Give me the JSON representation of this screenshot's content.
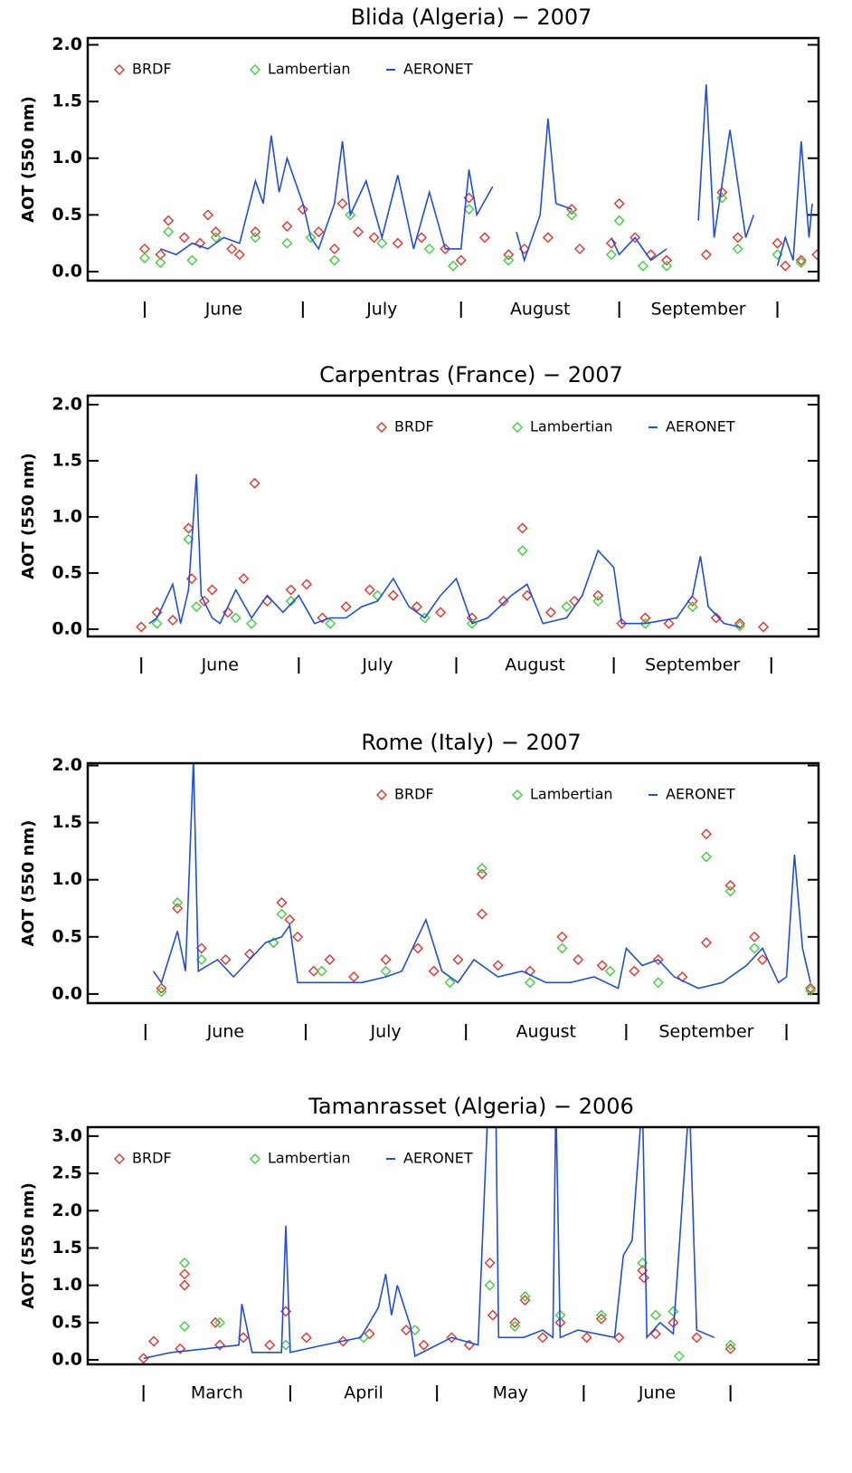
{
  "chart_data": [
    {
      "type": "line",
      "title": "Blida (Algeria) − 2007",
      "y_label": "AOT (550 nm)",
      "legend": "upper left",
      "xlim": [
        -0.36,
        4.26
      ],
      "xticks": [
        {
          "value": 0.5,
          "label": "June"
        },
        {
          "value": 1.5,
          "label": "July"
        },
        {
          "value": 2.5,
          "label": "August"
        },
        {
          "value": 3.5,
          "label": "September"
        }
      ],
      "xdividers": [
        0,
        1,
        2,
        3,
        4
      ],
      "ylim": [
        -0.08,
        2.06
      ],
      "yticks": [
        {
          "value": 0,
          "label": "0.0"
        },
        {
          "value": 0.5,
          "label": "0.5"
        },
        {
          "value": 1,
          "label": "1.0"
        },
        {
          "value": 1.5,
          "label": "1.5"
        },
        {
          "value": 2,
          "label": "2.0"
        }
      ],
      "series": [
        {
          "name": "BRDF",
          "color": "#e8302a",
          "marker": "diamond",
          "x": [
            0.0,
            0.1,
            0.15,
            0.25,
            0.35,
            0.4,
            0.45,
            0.55,
            0.6,
            0.7,
            0.9,
            1.0,
            1.1,
            1.2,
            1.25,
            1.35,
            1.45,
            1.6,
            1.75,
            1.9,
            2.0,
            2.05,
            2.15,
            2.3,
            2.4,
            2.55,
            2.7,
            2.75,
            2.95,
            3.0,
            3.1,
            3.2,
            3.3,
            3.55,
            3.65,
            3.75,
            4.0,
            4.05,
            4.15,
            4.25
          ],
          "values": [
            0.2,
            0.15,
            0.45,
            0.3,
            0.25,
            0.5,
            0.35,
            0.2,
            0.15,
            0.35,
            0.4,
            0.55,
            0.35,
            0.2,
            0.6,
            0.35,
            0.3,
            0.25,
            0.3,
            0.2,
            0.1,
            0.65,
            0.3,
            0.15,
            0.2,
            0.3,
            0.55,
            0.2,
            0.25,
            0.6,
            0.3,
            0.15,
            0.1,
            0.15,
            0.7,
            0.3,
            0.25,
            0.05,
            0.1,
            0.15
          ]
        },
        {
          "name": "Lambertian",
          "color": "#3ecf3e",
          "marker": "diamond",
          "x": [
            0.0,
            0.1,
            0.15,
            0.3,
            0.45,
            0.7,
            0.9,
            1.05,
            1.2,
            1.3,
            1.5,
            1.8,
            1.95,
            2.05,
            2.3,
            2.7,
            2.95,
            3.0,
            3.15,
            3.3,
            3.65,
            3.75,
            4.0,
            4.15
          ],
          "values": [
            0.12,
            0.08,
            0.35,
            0.1,
            0.3,
            0.3,
            0.25,
            0.3,
            0.1,
            0.5,
            0.25,
            0.2,
            0.05,
            0.55,
            0.1,
            0.5,
            0.15,
            0.45,
            0.05,
            0.05,
            0.65,
            0.2,
            0.15,
            0.08
          ]
        },
        {
          "name": "AERONET",
          "color": "#1f4fd8",
          "marker": "line",
          "x": [
            0.1,
            0.2,
            0.3,
            0.4,
            0.5,
            0.6,
            0.7,
            0.75,
            0.8,
            0.85,
            0.9,
            1.0,
            1.05,
            1.1,
            1.2,
            1.25,
            1.3,
            1.4,
            1.5,
            1.6,
            1.7,
            1.8,
            1.9,
            2.0,
            2.05,
            2.1,
            2.2,
            2.3,
            2.35,
            2.4,
            2.5,
            2.55,
            2.6,
            2.7,
            2.8,
            2.95,
            3.0,
            3.1,
            3.2,
            3.3,
            3.4,
            3.5,
            3.55,
            3.6,
            3.7,
            3.8,
            3.85,
            3.9,
            4.0,
            4.05,
            4.1,
            4.15,
            4.2,
            4.22
          ],
          "values": [
            0.2,
            0.15,
            0.25,
            0.2,
            0.3,
            0.25,
            0.8,
            0.6,
            1.2,
            0.7,
            1.0,
            0.6,
            0.3,
            0.2,
            0.6,
            1.15,
            0.5,
            0.8,
            0.3,
            0.85,
            0.2,
            0.7,
            0.2,
            0.2,
            0.9,
            0.5,
            0.75,
            null,
            0.35,
            0.1,
            0.5,
            1.35,
            0.6,
            0.55,
            null,
            0.3,
            0.15,
            0.3,
            0.1,
            0.2,
            null,
            0.45,
            1.65,
            0.3,
            1.25,
            0.3,
            0.5,
            null,
            0.05,
            0.3,
            0.1,
            1.15,
            0.3,
            0.6
          ]
        }
      ]
    },
    {
      "type": "line",
      "title": "Carpentras (France) − 2007",
      "y_label": "AOT (550 nm)",
      "legend": "upper right",
      "xlim": [
        -0.34,
        4.3
      ],
      "xticks": [
        {
          "value": 0.5,
          "label": "June"
        },
        {
          "value": 1.5,
          "label": "July"
        },
        {
          "value": 2.5,
          "label": "August"
        },
        {
          "value": 3.5,
          "label": "September"
        }
      ],
      "xdividers": [
        0,
        1,
        2,
        3,
        4
      ],
      "ylim": [
        -0.065,
        2.08
      ],
      "yticks": [
        {
          "value": 0,
          "label": "0.0"
        },
        {
          "value": 0.5,
          "label": "0.5"
        },
        {
          "value": 1,
          "label": "1.0"
        },
        {
          "value": 1.5,
          "label": "1.5"
        },
        {
          "value": 2,
          "label": "2.0"
        }
      ],
      "series": [
        {
          "name": "BRDF",
          "color": "#e8302a",
          "marker": "diamond",
          "x": [
            0.0,
            0.1,
            0.2,
            0.3,
            0.32,
            0.4,
            0.45,
            0.55,
            0.65,
            0.72,
            0.8,
            0.95,
            1.05,
            1.15,
            1.3,
            1.45,
            1.6,
            1.75,
            1.9,
            2.1,
            2.3,
            2.42,
            2.45,
            2.6,
            2.75,
            2.9,
            3.05,
            3.2,
            3.35,
            3.5,
            3.65,
            3.8,
            3.95
          ],
          "values": [
            0.02,
            0.15,
            0.08,
            0.9,
            0.45,
            0.25,
            0.35,
            0.15,
            0.45,
            1.3,
            0.25,
            0.35,
            0.4,
            0.1,
            0.2,
            0.35,
            0.3,
            0.2,
            0.15,
            0.1,
            0.25,
            0.9,
            0.3,
            0.15,
            0.25,
            0.3,
            0.05,
            0.1,
            0.05,
            0.25,
            0.1,
            0.05,
            0.02
          ]
        },
        {
          "name": "Lambertian",
          "color": "#3ecf3e",
          "marker": "diamond",
          "x": [
            0.1,
            0.3,
            0.35,
            0.6,
            0.7,
            0.95,
            1.2,
            1.5,
            1.8,
            2.1,
            2.42,
            2.7,
            2.9,
            3.2,
            3.5,
            3.8
          ],
          "values": [
            0.05,
            0.8,
            0.2,
            0.1,
            0.05,
            0.25,
            0.05,
            0.3,
            0.1,
            0.05,
            0.7,
            0.2,
            0.25,
            0.05,
            0.2,
            0.03
          ]
        },
        {
          "name": "AERONET",
          "color": "#1f4fd8",
          "marker": "line",
          "x": [
            0.05,
            0.1,
            0.2,
            0.25,
            0.3,
            0.35,
            0.38,
            0.45,
            0.5,
            0.6,
            0.7,
            0.8,
            0.9,
            1.0,
            1.1,
            1.2,
            1.3,
            1.4,
            1.5,
            1.6,
            1.7,
            1.8,
            1.9,
            2.0,
            2.1,
            2.2,
            2.35,
            2.45,
            2.55,
            2.7,
            2.8,
            2.9,
            3.0,
            3.05,
            3.2,
            3.4,
            3.5,
            3.55,
            3.6,
            3.7,
            3.8
          ],
          "values": [
            0.05,
            0.1,
            0.4,
            0.05,
            0.35,
            1.38,
            0.3,
            0.1,
            0.05,
            0.35,
            0.1,
            0.3,
            0.15,
            0.3,
            0.05,
            0.1,
            0.1,
            0.2,
            0.25,
            0.45,
            0.2,
            0.1,
            0.3,
            0.45,
            0.05,
            0.1,
            0.3,
            0.4,
            0.05,
            0.1,
            0.3,
            0.7,
            0.55,
            0.05,
            0.05,
            0.1,
            0.3,
            0.65,
            0.2,
            0.05,
            0.02
          ]
        }
      ]
    },
    {
      "type": "line",
      "title": "Rome (Italy) − 2007",
      "y_label": "AOT (550 nm)",
      "legend": "upper right",
      "xlim": [
        -0.36,
        4.2
      ],
      "xticks": [
        {
          "value": 0.5,
          "label": "June"
        },
        {
          "value": 1.5,
          "label": "July"
        },
        {
          "value": 2.5,
          "label": "August"
        },
        {
          "value": 3.5,
          "label": "September"
        }
      ],
      "xdividers": [
        0,
        1,
        2,
        3,
        4
      ],
      "ylim": [
        -0.08,
        2.02
      ],
      "yticks": [
        {
          "value": 0,
          "label": "0.0"
        },
        {
          "value": 0.5,
          "label": "0.5"
        },
        {
          "value": 1,
          "label": "1.0"
        },
        {
          "value": 1.5,
          "label": "1.5"
        },
        {
          "value": 2,
          "label": "2.0"
        }
      ],
      "series": [
        {
          "name": "BRDF",
          "color": "#e8302a",
          "marker": "diamond",
          "x": [
            0.1,
            0.2,
            0.35,
            0.5,
            0.65,
            0.8,
            0.85,
            0.9,
            0.95,
            1.05,
            1.15,
            1.3,
            1.5,
            1.7,
            1.8,
            1.95,
            2.1,
            2.1,
            2.2,
            2.4,
            2.6,
            2.7,
            2.85,
            3.05,
            3.2,
            3.35,
            3.5,
            3.5,
            3.65,
            3.8,
            3.85,
            4.15
          ],
          "values": [
            0.05,
            0.75,
            0.4,
            0.3,
            0.35,
            0.45,
            0.8,
            0.65,
            0.5,
            0.2,
            0.3,
            0.15,
            0.3,
            0.4,
            0.2,
            0.3,
            0.7,
            1.05,
            0.25,
            0.2,
            0.5,
            0.3,
            0.25,
            0.2,
            0.3,
            0.15,
            1.4,
            0.45,
            0.95,
            0.5,
            0.3,
            0.05
          ]
        },
        {
          "name": "Lambertian",
          "color": "#3ecf3e",
          "marker": "diamond",
          "x": [
            0.1,
            0.2,
            0.35,
            0.8,
            0.85,
            1.1,
            1.5,
            1.9,
            2.1,
            2.4,
            2.6,
            2.9,
            3.2,
            3.5,
            3.65,
            3.8,
            4.15
          ],
          "values": [
            0.02,
            0.8,
            0.3,
            0.45,
            0.7,
            0.2,
            0.2,
            0.1,
            1.1,
            0.1,
            0.4,
            0.2,
            0.1,
            1.2,
            0.9,
            0.4,
            0.03
          ]
        },
        {
          "name": "AERONET",
          "color": "#1f4fd8",
          "marker": "line",
          "x": [
            0.05,
            0.1,
            0.2,
            0.25,
            0.3,
            0.33,
            0.45,
            0.55,
            0.65,
            0.75,
            0.85,
            0.9,
            0.95,
            1.05,
            1.2,
            1.35,
            1.5,
            1.6,
            1.7,
            1.75,
            1.85,
            1.95,
            2.05,
            2.2,
            2.35,
            2.5,
            2.65,
            2.8,
            2.95,
            3.0,
            3.1,
            3.2,
            3.3,
            3.45,
            3.6,
            3.75,
            3.85,
            3.95,
            4.0,
            4.05,
            4.1,
            4.15
          ],
          "values": [
            0.2,
            0.1,
            0.55,
            0.2,
            2.05,
            0.2,
            0.3,
            0.15,
            0.3,
            0.45,
            0.5,
            0.6,
            0.1,
            0.1,
            0.1,
            0.1,
            0.15,
            0.2,
            0.5,
            0.65,
            0.2,
            0.1,
            0.3,
            0.15,
            0.2,
            0.1,
            0.1,
            0.15,
            0.05,
            0.4,
            0.25,
            0.3,
            0.15,
            0.05,
            0.1,
            0.25,
            0.4,
            0.1,
            0.15,
            1.22,
            0.4,
            0.1
          ]
        }
      ]
    },
    {
      "type": "line",
      "title": "Tamanrasset (Algeria) − 2006",
      "y_label": "AOT (550 nm)",
      "legend": "upper left",
      "xlim": [
        -0.38,
        4.6
      ],
      "xticks": [
        {
          "value": 0.5,
          "label": "March"
        },
        {
          "value": 1.5,
          "label": "April"
        },
        {
          "value": 2.5,
          "label": "May"
        },
        {
          "value": 3.5,
          "label": "June"
        }
      ],
      "xdividers": [
        0,
        1,
        2,
        3,
        4
      ],
      "ylim": [
        -0.06,
        3.12
      ],
      "yticks": [
        {
          "value": 0,
          "label": "0.0"
        },
        {
          "value": 0.5,
          "label": "0.5"
        },
        {
          "value": 1,
          "label": "1.0"
        },
        {
          "value": 1.5,
          "label": "1.5"
        },
        {
          "value": 2,
          "label": "2.0"
        },
        {
          "value": 2.5,
          "label": "2.5"
        },
        {
          "value": 3,
          "label": "3.0"
        }
      ],
      "series": [
        {
          "name": "BRDF",
          "color": "#e8302a",
          "marker": "diamond",
          "x": [
            0.0,
            0.07,
            0.25,
            0.28,
            0.28,
            0.49,
            0.52,
            0.68,
            0.86,
            0.97,
            1.11,
            1.36,
            1.54,
            1.79,
            1.91,
            2.1,
            2.22,
            2.36,
            2.38,
            2.53,
            2.6,
            2.72,
            2.84,
            3.02,
            3.12,
            3.24,
            3.4,
            3.41,
            3.49,
            3.61,
            3.77,
            4.0
          ],
          "values": [
            0.02,
            0.25,
            0.15,
            1.15,
            1.0,
            0.5,
            0.2,
            0.3,
            0.2,
            0.65,
            0.3,
            0.25,
            0.35,
            0.4,
            0.2,
            0.3,
            0.2,
            1.3,
            0.6,
            0.5,
            0.8,
            0.3,
            0.5,
            0.3,
            0.55,
            0.3,
            1.2,
            1.1,
            0.35,
            0.5,
            0.3,
            0.15
          ]
        },
        {
          "name": "Lambertian",
          "color": "#3ecf3e",
          "marker": "diamond",
          "x": [
            0.28,
            0.28,
            0.52,
            0.97,
            1.5,
            1.85,
            2.36,
            2.53,
            2.6,
            2.84,
            3.12,
            3.4,
            3.49,
            3.61,
            3.65,
            4.0
          ],
          "values": [
            1.3,
            0.45,
            0.5,
            0.2,
            0.3,
            0.4,
            1.0,
            0.45,
            0.85,
            0.6,
            0.6,
            1.3,
            0.6,
            0.65,
            0.05,
            0.2
          ]
        },
        {
          "name": "AERONET",
          "color": "#1f4fd8",
          "marker": "line",
          "x": [
            0.0,
            0.19,
            0.43,
            0.65,
            0.67,
            0.74,
            0.94,
            0.97,
            1.0,
            1.23,
            1.48,
            1.6,
            1.65,
            1.69,
            1.73,
            1.82,
            1.85,
            2.1,
            2.28,
            2.35,
            2.4,
            2.42,
            2.59,
            2.72,
            2.79,
            2.81,
            2.84,
            2.96,
            3.21,
            3.27,
            3.33,
            3.4,
            3.43,
            3.52,
            3.61,
            3.72,
            3.77,
            3.89
          ],
          "values": [
            0.02,
            0.1,
            0.15,
            0.2,
            0.75,
            0.1,
            0.1,
            1.8,
            0.1,
            0.2,
            0.3,
            0.7,
            1.15,
            0.6,
            1.0,
            0.45,
            0.05,
            0.3,
            0.2,
            3.5,
            3.5,
            0.3,
            0.3,
            0.4,
            0.3,
            3.5,
            0.3,
            0.4,
            0.3,
            1.4,
            1.6,
            3.5,
            0.3,
            0.5,
            0.35,
            3.5,
            0.4,
            0.3
          ]
        }
      ]
    }
  ]
}
